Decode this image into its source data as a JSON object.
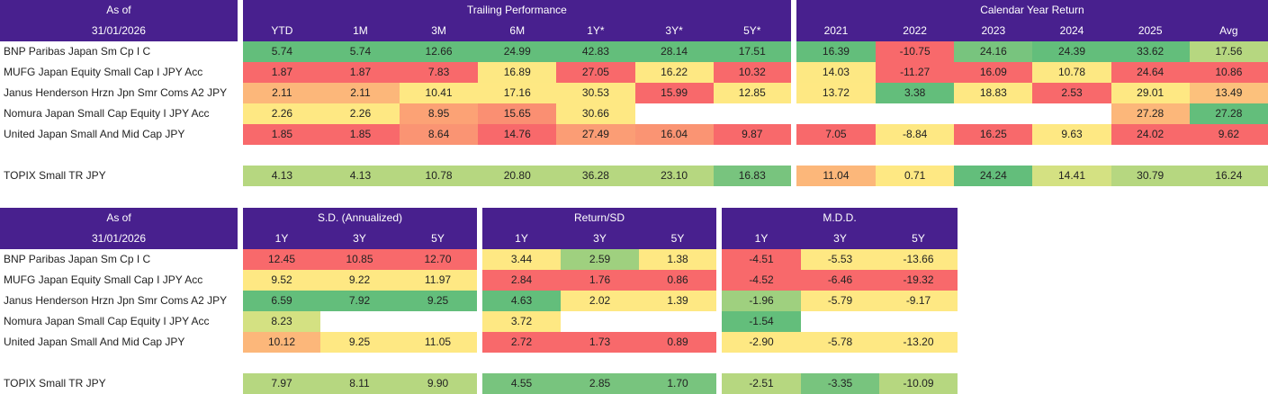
{
  "performance": {
    "as_of_label": "As of",
    "as_of_date": "31/01/2026",
    "group_trailing": "Trailing Performance",
    "group_calendar": "Calendar Year Return",
    "trailing_cols": [
      "YTD",
      "1M",
      "3M",
      "6M",
      "1Y*",
      "3Y*",
      "5Y*"
    ],
    "calendar_cols": [
      "2021",
      "2022",
      "2023",
      "2024",
      "2025",
      "Avg"
    ],
    "rows": [
      {
        "name": "BNP Paribas Japan Sm Cp I C",
        "trailing": [
          {
            "v": "5.74",
            "c": "#63be7b"
          },
          {
            "v": "5.74",
            "c": "#63be7b"
          },
          {
            "v": "12.66",
            "c": "#63be7b"
          },
          {
            "v": "24.99",
            "c": "#63be7b"
          },
          {
            "v": "42.83",
            "c": "#63be7b"
          },
          {
            "v": "28.14",
            "c": "#63be7b"
          },
          {
            "v": "17.51",
            "c": "#63be7b"
          }
        ],
        "calendar": [
          {
            "v": "16.39",
            "c": "#63be7b"
          },
          {
            "v": "-10.75",
            "c": "#f8696b"
          },
          {
            "v": "24.16",
            "c": "#78c47e"
          },
          {
            "v": "24.39",
            "c": "#63be7b"
          },
          {
            "v": "33.62",
            "c": "#63be7b"
          },
          {
            "v": "17.56",
            "c": "#b6d780"
          }
        ]
      },
      {
        "name": "MUFG Japan Equity Small Cap I JPY Acc",
        "trailing": [
          {
            "v": "1.87",
            "c": "#f8696b"
          },
          {
            "v": "1.87",
            "c": "#f8696b"
          },
          {
            "v": "7.83",
            "c": "#f8696b"
          },
          {
            "v": "16.89",
            "c": "#fde883"
          },
          {
            "v": "27.05",
            "c": "#f8696b"
          },
          {
            "v": "16.22",
            "c": "#fee883"
          },
          {
            "v": "10.32",
            "c": "#f8696b"
          }
        ],
        "calendar": [
          {
            "v": "14.03",
            "c": "#fde883"
          },
          {
            "v": "-11.27",
            "c": "#f8696b"
          },
          {
            "v": "16.09",
            "c": "#f8696b"
          },
          {
            "v": "10.78",
            "c": "#fde883"
          },
          {
            "v": "24.64",
            "c": "#f8696b"
          },
          {
            "v": "10.86",
            "c": "#f8696b"
          }
        ]
      },
      {
        "name": "Janus Henderson Hrzn Jpn Smr Coms A2 JPY",
        "trailing": [
          {
            "v": "2.11",
            "c": "#fcb77a"
          },
          {
            "v": "2.11",
            "c": "#fcb77a"
          },
          {
            "v": "10.41",
            "c": "#fee883"
          },
          {
            "v": "17.16",
            "c": "#fee883"
          },
          {
            "v": "30.53",
            "c": "#fee883"
          },
          {
            "v": "15.99",
            "c": "#f8696b"
          },
          {
            "v": "12.85",
            "c": "#fee883"
          }
        ],
        "calendar": [
          {
            "v": "13.72",
            "c": "#fee883"
          },
          {
            "v": "3.38",
            "c": "#63be7b"
          },
          {
            "v": "18.83",
            "c": "#fee883"
          },
          {
            "v": "2.53",
            "c": "#f8696b"
          },
          {
            "v": "29.01",
            "c": "#fee883"
          },
          {
            "v": "13.49",
            "c": "#fcc17c"
          }
        ]
      },
      {
        "name": "Nomura Japan Small Cap Equity I JPY Acc",
        "trailing": [
          {
            "v": "2.26",
            "c": "#fee883"
          },
          {
            "v": "2.26",
            "c": "#fee883"
          },
          {
            "v": "8.95",
            "c": "#fca275"
          },
          {
            "v": "15.65",
            "c": "#fa8f72"
          },
          {
            "v": "30.66",
            "c": "#fee883"
          },
          {
            "v": "",
            "c": "#ffffff"
          },
          {
            "v": "",
            "c": "#ffffff"
          }
        ],
        "calendar": [
          {
            "v": "",
            "c": "#ffffff"
          },
          {
            "v": "",
            "c": "#ffffff"
          },
          {
            "v": "",
            "c": "#ffffff"
          },
          {
            "v": "",
            "c": "#ffffff"
          },
          {
            "v": "27.28",
            "c": "#fcb77a"
          },
          {
            "v": "27.28",
            "c": "#63be7b"
          }
        ]
      },
      {
        "name": "United Japan Small And Mid Cap JPY",
        "trailing": [
          {
            "v": "1.85",
            "c": "#f8696b"
          },
          {
            "v": "1.85",
            "c": "#f8696b"
          },
          {
            "v": "8.64",
            "c": "#fa9473"
          },
          {
            "v": "14.76",
            "c": "#f8696b"
          },
          {
            "v": "27.49",
            "c": "#fb9d75"
          },
          {
            "v": "16.04",
            "c": "#fa9473"
          },
          {
            "v": "9.87",
            "c": "#f8696b"
          }
        ],
        "calendar": [
          {
            "v": "7.05",
            "c": "#f8696b"
          },
          {
            "v": "-8.84",
            "c": "#fee883"
          },
          {
            "v": "16.25",
            "c": "#f8696b"
          },
          {
            "v": "9.63",
            "c": "#fee883"
          },
          {
            "v": "24.02",
            "c": "#f8696b"
          },
          {
            "v": "9.62",
            "c": "#f8696b"
          }
        ]
      }
    ],
    "benchmark": {
      "name": "TOPIX Small TR JPY",
      "trailing": [
        {
          "v": "4.13",
          "c": "#b6d780"
        },
        {
          "v": "4.13",
          "c": "#b6d780"
        },
        {
          "v": "10.78",
          "c": "#b6d780"
        },
        {
          "v": "20.80",
          "c": "#b6d780"
        },
        {
          "v": "36.28",
          "c": "#b6d780"
        },
        {
          "v": "23.10",
          "c": "#b6d780"
        },
        {
          "v": "16.83",
          "c": "#78c47e"
        }
      ],
      "calendar": [
        {
          "v": "11.04",
          "c": "#fcb77a"
        },
        {
          "v": "0.71",
          "c": "#fee883"
        },
        {
          "v": "24.24",
          "c": "#63be7b"
        },
        {
          "v": "14.41",
          "c": "#d4e182"
        },
        {
          "v": "30.79",
          "c": "#b6d780"
        },
        {
          "v": "16.24",
          "c": "#b6d780"
        }
      ]
    }
  },
  "risk": {
    "as_of_label": "As of",
    "as_of_date": "31/01/2026",
    "group_sd": "S.D. (Annualized)",
    "group_return_sd": "Return/SD",
    "group_mdd": "M.D.D.",
    "sd_cols": [
      "1Y",
      "3Y",
      "5Y"
    ],
    "return_sd_cols": [
      "1Y",
      "3Y",
      "5Y"
    ],
    "mdd_cols": [
      "1Y",
      "3Y",
      "5Y"
    ],
    "rows": [
      {
        "name": "BNP Paribas Japan Sm Cp I C",
        "sd": [
          {
            "v": "12.45",
            "c": "#f8696b"
          },
          {
            "v": "10.85",
            "c": "#f8696b"
          },
          {
            "v": "12.70",
            "c": "#f8696b"
          }
        ],
        "return_sd": [
          {
            "v": "3.44",
            "c": "#fee883"
          },
          {
            "v": "2.59",
            "c": "#9fd07f"
          },
          {
            "v": "1.38",
            "c": "#fee883"
          }
        ],
        "mdd": [
          {
            "v": "-4.51",
            "c": "#f8696b"
          },
          {
            "v": "-5.53",
            "c": "#fee883"
          },
          {
            "v": "-13.66",
            "c": "#fee883"
          }
        ]
      },
      {
        "name": "MUFG Japan Equity Small Cap I JPY Acc",
        "sd": [
          {
            "v": "9.52",
            "c": "#fee883"
          },
          {
            "v": "9.22",
            "c": "#fee883"
          },
          {
            "v": "11.97",
            "c": "#fee883"
          }
        ],
        "return_sd": [
          {
            "v": "2.84",
            "c": "#f8696b"
          },
          {
            "v": "1.76",
            "c": "#f8696b"
          },
          {
            "v": "0.86",
            "c": "#f8696b"
          }
        ],
        "mdd": [
          {
            "v": "-4.52",
            "c": "#f8696b"
          },
          {
            "v": "-6.46",
            "c": "#f8696b"
          },
          {
            "v": "-19.32",
            "c": "#f8696b"
          }
        ]
      },
      {
        "name": "Janus Henderson Hrzn Jpn Smr Coms A2 JPY",
        "sd": [
          {
            "v": "6.59",
            "c": "#63be7b"
          },
          {
            "v": "7.92",
            "c": "#63be7b"
          },
          {
            "v": "9.25",
            "c": "#63be7b"
          }
        ],
        "return_sd": [
          {
            "v": "4.63",
            "c": "#63be7b"
          },
          {
            "v": "2.02",
            "c": "#fee883"
          },
          {
            "v": "1.39",
            "c": "#fee883"
          }
        ],
        "mdd": [
          {
            "v": "-1.96",
            "c": "#9fd07f"
          },
          {
            "v": "-5.79",
            "c": "#fee883"
          },
          {
            "v": "-9.17",
            "c": "#fee883"
          }
        ]
      },
      {
        "name": "Nomura Japan Small Cap Equity I JPY Acc",
        "sd": [
          {
            "v": "8.23",
            "c": "#d4e182"
          },
          {
            "v": "",
            "c": "#ffffff"
          },
          {
            "v": "",
            "c": "#ffffff"
          }
        ],
        "return_sd": [
          {
            "v": "3.72",
            "c": "#fee883"
          },
          {
            "v": "",
            "c": "#ffffff"
          },
          {
            "v": "",
            "c": "#ffffff"
          }
        ],
        "mdd": [
          {
            "v": "-1.54",
            "c": "#63be7b"
          },
          {
            "v": "",
            "c": "#ffffff"
          },
          {
            "v": "",
            "c": "#ffffff"
          }
        ]
      },
      {
        "name": "United Japan Small And Mid Cap JPY",
        "sd": [
          {
            "v": "10.12",
            "c": "#fcb77a"
          },
          {
            "v": "9.25",
            "c": "#fee883"
          },
          {
            "v": "11.05",
            "c": "#fee883"
          }
        ],
        "return_sd": [
          {
            "v": "2.72",
            "c": "#f8696b"
          },
          {
            "v": "1.73",
            "c": "#f8696b"
          },
          {
            "v": "0.89",
            "c": "#f8696b"
          }
        ],
        "mdd": [
          {
            "v": "-2.90",
            "c": "#fee883"
          },
          {
            "v": "-5.78",
            "c": "#fee883"
          },
          {
            "v": "-13.20",
            "c": "#fee883"
          }
        ]
      }
    ],
    "benchmark": {
      "name": "TOPIX Small TR JPY",
      "sd": [
        {
          "v": "7.97",
          "c": "#b6d780"
        },
        {
          "v": "8.11",
          "c": "#b6d780"
        },
        {
          "v": "9.90",
          "c": "#b6d780"
        }
      ],
      "return_sd": [
        {
          "v": "4.55",
          "c": "#78c47e"
        },
        {
          "v": "2.85",
          "c": "#78c47e"
        },
        {
          "v": "1.70",
          "c": "#78c47e"
        }
      ],
      "mdd": [
        {
          "v": "-2.51",
          "c": "#b6d780"
        },
        {
          "v": "-3.35",
          "c": "#78c47e"
        },
        {
          "v": "-10.09",
          "c": "#b6d780"
        }
      ]
    }
  }
}
